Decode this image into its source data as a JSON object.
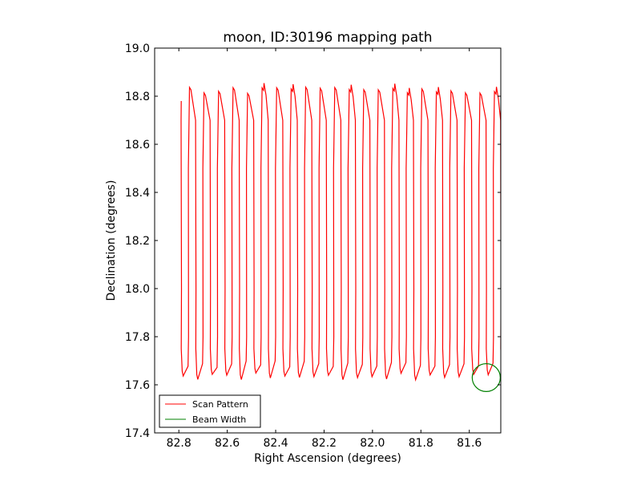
{
  "chart_data": {
    "type": "line",
    "title": "moon, ID:30196 mapping path",
    "xlabel": "Right Ascension (degrees)",
    "ylabel": "Declination (degrees)",
    "xlim": [
      82.9,
      81.47
    ],
    "ylim": [
      17.4,
      19.0
    ],
    "x_ticks": [
      "82.8",
      "82.6",
      "82.4",
      "82.2",
      "82.0",
      "81.8",
      "81.6"
    ],
    "y_ticks": [
      "17.4",
      "17.6",
      "17.8",
      "18.0",
      "18.2",
      "18.4",
      "18.6",
      "18.8",
      "19.0"
    ],
    "grid": false,
    "legend_position": "lower-left",
    "legend": [
      "Scan Pattern",
      "Beam Width"
    ],
    "colors": {
      "scan": "#ff0000",
      "beam": "#008000"
    },
    "scan_columns_ra": [
      82.79,
      82.76,
      82.73,
      82.7,
      82.67,
      82.64,
      82.61,
      82.58,
      82.55,
      82.52,
      82.49,
      82.46,
      82.43,
      82.4,
      82.37,
      82.34,
      82.31,
      82.28,
      82.25,
      82.22,
      82.19,
      82.16,
      82.13,
      82.1,
      82.07,
      82.04,
      82.01,
      81.98,
      81.95,
      81.92,
      81.89,
      81.86,
      81.83,
      81.8,
      81.77,
      81.74,
      81.71,
      81.68,
      81.65,
      81.62,
      81.59,
      81.56,
      81.53,
      81.5,
      81.47
    ],
    "scan_dec_range": [
      17.62,
      18.84
    ],
    "beam_width": {
      "center_ra": 81.53,
      "center_dec": 17.63,
      "radius_deg": 0.058
    }
  }
}
